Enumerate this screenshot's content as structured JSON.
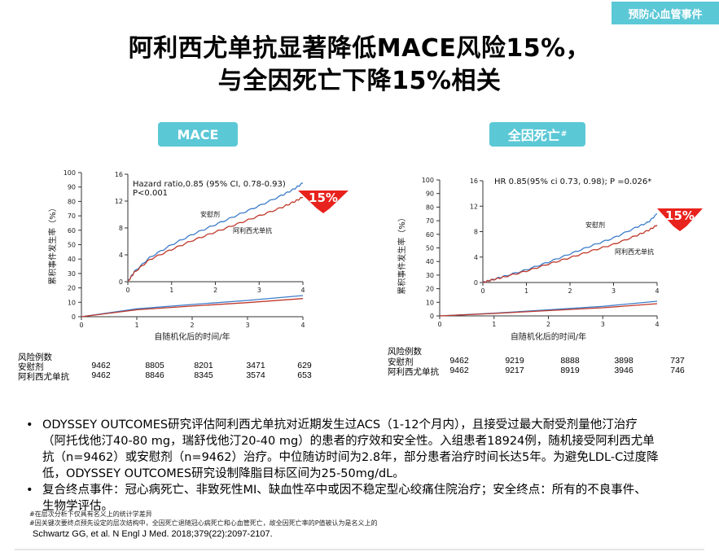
{
  "tag": "预防心血管事件",
  "title_line1": "阿利西尤单抗显著降低MACE风险15%，",
  "title_line2": "与全因死亡下降15%相关",
  "colors": {
    "accent": "#5bc8d6",
    "placebo": "#3d7cc9",
    "alirocumab": "#c0392b",
    "arrow": "#e8221c"
  },
  "chart_data": [
    {
      "type": "line",
      "panel_label": "MACE",
      "ylabel": "累积事件发生率（%）",
      "xlabel": "自随机化后的时间/年",
      "xlim": [
        0,
        4
      ],
      "ylim": [
        0,
        100
      ],
      "y_ticks": [
        0,
        10,
        20,
        30,
        40,
        50,
        60,
        70,
        80,
        90,
        100
      ],
      "x_ticks": [
        0,
        1,
        2,
        3,
        4
      ],
      "inset": {
        "ylim": [
          0,
          16
        ],
        "y_ticks": [
          0,
          4,
          8,
          12,
          16
        ],
        "x_ticks": [
          0,
          1,
          2,
          3,
          4
        ],
        "annotation1": "Hazard ratio,0.85 (95% CI, 0.78-0.93)",
        "annotation2": "P<0.001",
        "series": [
          {
            "name": "安慰剂",
            "x": [
              0,
              0.15,
              0.5,
              1,
              1.5,
              2,
              2.5,
              3,
              3.5,
              3.8,
              4
            ],
            "y": [
              0,
              1.5,
              3.6,
              5.5,
              7.1,
              8.5,
              9.9,
              11.3,
              12.8,
              13.8,
              14.7
            ]
          },
          {
            "name": "阿利西尤单抗",
            "x": [
              0,
              0.15,
              0.5,
              1,
              1.5,
              2,
              2.5,
              3,
              3.5,
              3.8,
              4
            ],
            "y": [
              0,
              1.4,
              3.3,
              4.8,
              6.2,
              7.4,
              8.6,
              9.8,
              11.0,
              11.9,
              12.6
            ]
          }
        ]
      },
      "series": [
        {
          "name": "安慰剂",
          "x": [
            0,
            1,
            2,
            3,
            4
          ],
          "y": [
            0,
            5.5,
            8.5,
            11.3,
            14.7
          ]
        },
        {
          "name": "阿利西尤单抗",
          "x": [
            0,
            1,
            2,
            3,
            4
          ],
          "y": [
            0,
            4.8,
            7.4,
            9.8,
            12.6
          ]
        }
      ],
      "badge": "15%",
      "risk_header": "风险例数",
      "risk_rows": [
        {
          "label": "安慰剂",
          "values": [
            "9462",
            "8805",
            "8201",
            "3471",
            "629"
          ]
        },
        {
          "label": "阿利西尤单抗",
          "values": [
            "9462",
            "8846",
            "8345",
            "3574",
            "653"
          ]
        }
      ]
    },
    {
      "type": "line",
      "panel_label": "全因死亡",
      "panel_sup": "#",
      "ylabel": "累积事件发生率（%）",
      "xlabel": "自随机化后的时间/年",
      "xlim": [
        0,
        4
      ],
      "ylim": [
        0,
        100
      ],
      "y_ticks": [
        0,
        10,
        20,
        30,
        40,
        50,
        60,
        70,
        80,
        90,
        100
      ],
      "x_ticks": [
        0,
        1,
        2,
        3,
        4
      ],
      "inset": {
        "ylim": [
          0,
          16
        ],
        "y_ticks": [
          0,
          4,
          8,
          12,
          16
        ],
        "x_ticks": [
          0,
          1,
          2,
          3,
          4
        ],
        "annotation1": "HR 0.85(95% ci 0.73, 0.98); P =0.026*",
        "annotation2": "",
        "series": [
          {
            "name": "安慰剂",
            "x": [
              0,
              0.2,
              0.5,
              1,
              1.5,
              2,
              2.5,
              3,
              3.5,
              3.8,
              4
            ],
            "y": [
              0,
              0.4,
              1.0,
              2.0,
              3.2,
              4.5,
              5.8,
              7.0,
              8.6,
              9.5,
              10.8
            ]
          },
          {
            "name": "阿利西尤单抗",
            "x": [
              0,
              0.2,
              0.5,
              1,
              1.5,
              2,
              2.5,
              3,
              3.5,
              3.8,
              4
            ],
            "y": [
              0,
              0.4,
              0.9,
              1.8,
              2.9,
              3.9,
              5.0,
              6.0,
              7.3,
              8.2,
              9.0
            ]
          }
        ]
      },
      "series": [
        {
          "name": "安慰剂",
          "x": [
            0,
            1,
            2,
            3,
            4
          ],
          "y": [
            0,
            2.0,
            4.5,
            7.0,
            10.8
          ]
        },
        {
          "name": "阿利西尤单抗",
          "x": [
            0,
            1,
            2,
            3,
            4
          ],
          "y": [
            0,
            1.8,
            3.9,
            6.0,
            9.0
          ]
        }
      ],
      "badge": "15%",
      "risk_header": "风险例数",
      "risk_rows": [
        {
          "label": "安慰剂",
          "values": [
            "9462",
            "9219",
            "8888",
            "3898",
            "737"
          ]
        },
        {
          "label": "阿利西尤单抗",
          "values": [
            "9462",
            "9217",
            "8919",
            "3946",
            "746"
          ]
        }
      ]
    }
  ],
  "bullet1_line1": "ODYSSEY OUTCOMES研究评估阿利西尤单抗对近期发生过ACS（1-12个月内），且接受过最大耐受剂量他汀治疗",
  "bullet1_line2": "（阿托伐他汀40-80 mg，瑞舒伐他汀20-40 mg）的患者的疗效和安全性。入组患者18924例，随机接受阿利西尤单",
  "bullet1_line3": "抗（n=9462）或安慰剂（n=9462）治疗。中位随访时间为2.8年，部分患者治疗时间长达5年。为避免LDL-C过度降",
  "bullet1_line4": "低，ODYSSEY OUTCOMES研究设制降脂目标区间为25-50mg/dL。",
  "bullet2_line1": "复合终点事件：冠心病死亡、非致死性MI、缺血性卒中或因不稳定型心绞痛住院治疗；安全终点：所有的不良事件、",
  "bullet2_line2": "生物学评估。",
  "footnote1": "#在层次分析下仅具有名义上的统计学差异",
  "footnote2": "#因关键次要终点预先设定的层次结构中，全因死亡退随冠心病死亡和心血管死亡，故全因死亡率的P值被认为是名义上的",
  "reference": "Schwartz GG, et al. N Engl J Med. 2018;379(22):2097-2107."
}
